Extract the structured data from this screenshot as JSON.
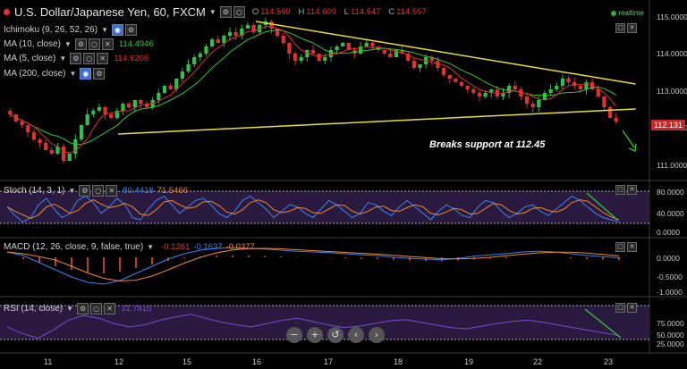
{
  "header": {
    "symbol": "U.S. Dollar/Japanese Yen, 60, FXCM",
    "ohlc": {
      "o_label": "O",
      "o": "114.569",
      "h_label": "H",
      "h": "114.609",
      "l_label": "L",
      "l": "114.547",
      "c_label": "C",
      "c": "114.557"
    },
    "realtime": "realtime"
  },
  "indicators": {
    "ichimoku": {
      "label": "Ichimoku (9, 26, 52, 26)"
    },
    "ma10": {
      "label": "MA (10, close)",
      "value": "114.4946",
      "color": "#36c636"
    },
    "ma5": {
      "label": "MA (5, close)",
      "value": "114.6206",
      "color": "#e03030"
    },
    "ma200": {
      "label": "MA (200, close)"
    }
  },
  "current_price": "112.131",
  "annotation": "Breaks support at 112.45",
  "panels": {
    "stoch": {
      "label": "Stoch (14, 3, 1)",
      "v1": "80.4418",
      "v2": "71.5466",
      "ticks": [
        "80.0000",
        "40.0000",
        "0.0000"
      ]
    },
    "macd": {
      "label": "MACD (12, 26, close, 9, false, true)",
      "v1": "-0.1261",
      "v2": "-0.1637",
      "v3": "-0.0377",
      "ticks": [
        "0.0000",
        "-0.5000",
        "-1.0000"
      ]
    },
    "rsi": {
      "label": "RSI (14, close)",
      "v1": "31.7815",
      "ticks": [
        "75.0000",
        "50.0000",
        "25.0000"
      ]
    }
  },
  "chart_data": {
    "type": "candlestick",
    "x_labels": [
      "11",
      "12",
      "15",
      "16",
      "17",
      "18",
      "19",
      "22",
      "23"
    ],
    "price_axis": {
      "ticks": [
        "115.0000",
        "114.0000",
        "113.0000",
        "112.0000",
        "111.0000"
      ],
      "ylim": [
        110.6,
        115.3
      ]
    },
    "closes": [
      112.3,
      112.1,
      112.0,
      111.8,
      111.6,
      111.5,
      111.3,
      111.2,
      111.4,
      111.0,
      111.2,
      111.6,
      112.0,
      112.3,
      112.4,
      112.5,
      112.3,
      112.2,
      112.4,
      112.6,
      112.5,
      112.7,
      112.6,
      112.5,
      112.7,
      112.9,
      113.1,
      113.0,
      113.3,
      113.5,
      113.7,
      113.9,
      114.0,
      114.2,
      114.4,
      114.3,
      114.5,
      114.6,
      114.5,
      114.7,
      114.8,
      114.6,
      114.8,
      114.9,
      114.7,
      114.5,
      114.3,
      114.0,
      113.8,
      113.9,
      114.1,
      114.0,
      113.8,
      113.9,
      114.1,
      114.2,
      114.3,
      114.1,
      114.0,
      114.2,
      114.3,
      114.2,
      114.1,
      114.0,
      113.9,
      114.1,
      114.0,
      113.8,
      113.6,
      113.7,
      113.9,
      113.8,
      113.6,
      113.4,
      113.3,
      113.2,
      113.1,
      113.0,
      112.9,
      112.8,
      112.9,
      113.0,
      112.8,
      112.9,
      113.1,
      113.0,
      112.8,
      112.6,
      112.5,
      112.7,
      112.9,
      113.0,
      113.1,
      113.3,
      113.2,
      113.1,
      113.0,
      113.2,
      113.0,
      112.8,
      112.5,
      112.2,
      112.1
    ],
    "ma10_color": "#36c636",
    "ma5_color": "#e03030",
    "trendlines": [
      {
        "name": "resistance",
        "from": [
          16,
          114.9
        ],
        "to": [
          23.4,
          113.15
        ],
        "color": "#e8e030"
      },
      {
        "name": "support",
        "from": [
          12,
          111.75
        ],
        "to": [
          23.4,
          112.45
        ],
        "color": "#e8e030"
      }
    ],
    "stoch_k": [
      55,
      35,
      20,
      30,
      60,
      75,
      50,
      30,
      40,
      70,
      80,
      65,
      40,
      55,
      75,
      60,
      30,
      25,
      50,
      70,
      80,
      60,
      40,
      55,
      70,
      75,
      60,
      40,
      30,
      45,
      70,
      80,
      65,
      50,
      30,
      45,
      60,
      55,
      40,
      30,
      50,
      70,
      60,
      45,
      30,
      40,
      65,
      60,
      45,
      35,
      55,
      70,
      55,
      40,
      25,
      45,
      60,
      50,
      35,
      30,
      55,
      70,
      65,
      45,
      30,
      40,
      55,
      60,
      45,
      35,
      50,
      65,
      80,
      70,
      55,
      40,
      30,
      25,
      20
    ],
    "macd_line": [
      0.0,
      -0.1,
      -0.3,
      -0.5,
      -0.7,
      -0.85,
      -0.9,
      -0.8,
      -0.6,
      -0.4,
      -0.2,
      -0.05,
      0.05,
      0.1,
      0.12,
      0.1,
      0.08,
      0.05,
      0.02,
      0.0,
      -0.02,
      -0.05,
      -0.08,
      -0.1,
      -0.15,
      -0.18,
      -0.2,
      -0.22,
      -0.18,
      -0.12,
      -0.08,
      -0.05,
      0.0,
      0.02,
      0.0,
      -0.05,
      -0.1,
      -0.13,
      -0.16
    ],
    "rsi": [
      45,
      35,
      28,
      40,
      55,
      62,
      58,
      50,
      45,
      48,
      55,
      60,
      64,
      58,
      52,
      48,
      45,
      50,
      55,
      58,
      53,
      48,
      44,
      46,
      50,
      54,
      56,
      52,
      48,
      44,
      42,
      46,
      50,
      53,
      55,
      52,
      48,
      44,
      40,
      36,
      32
    ]
  }
}
